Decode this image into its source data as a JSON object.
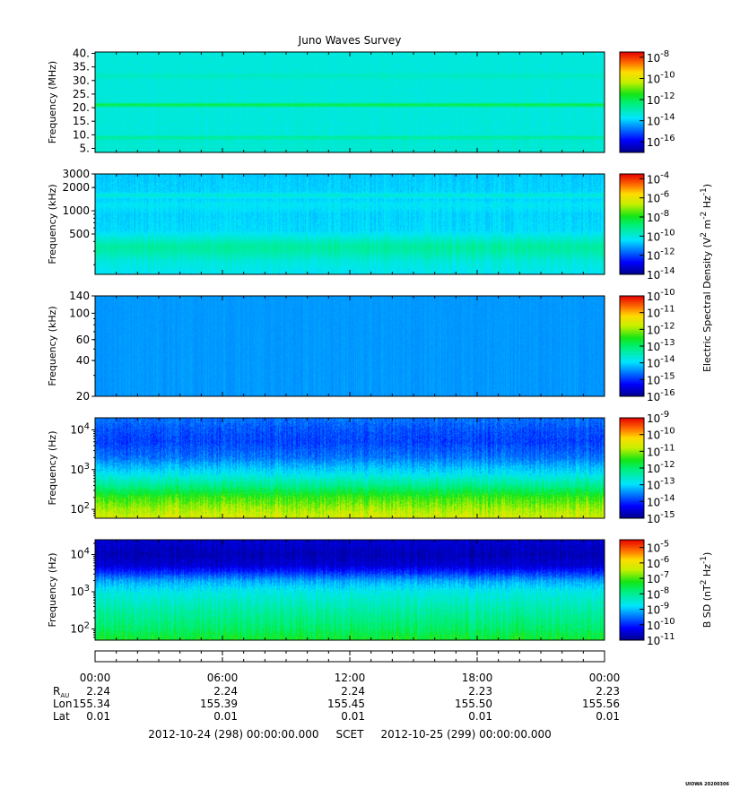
{
  "chart_data": {
    "type": "heatmap",
    "title": "Juno Waves Survey",
    "time_axis": {
      "ticks": [
        "00:00",
        "06:00",
        "12:00",
        "18:00",
        "00:00"
      ],
      "ephemeris": [
        {
          "label": "R",
          "sub": "AU",
          "values": [
            "2.24",
            "2.24",
            "2.24",
            "2.23",
            "2.23"
          ]
        },
        {
          "label": "Lon",
          "sub": "",
          "values": [
            "155.34",
            "155.39",
            "155.45",
            "155.50",
            "155.56"
          ]
        },
        {
          "label": "Lat",
          "sub": "",
          "values": [
            "0.01",
            "0.01",
            "0.01",
            "0.01",
            "0.01"
          ]
        }
      ],
      "range_text": "2012-10-24 (298) 00:00:00.000     SCET     2012-10-25 (299) 00:00:00.000",
      "start": "2012-10-24 00:00:00",
      "end": "2012-10-25 00:00:00"
    },
    "panels": [
      {
        "ylabel": "Frequency (MHz)",
        "yscale": "linear",
        "ylim": [
          3.5,
          40.5
        ],
        "yticks": [
          {
            "v": 5,
            "t": "5."
          },
          {
            "v": 10,
            "t": "10."
          },
          {
            "v": 15,
            "t": "15."
          },
          {
            "v": 20,
            "t": "20."
          },
          {
            "v": 25,
            "t": "25."
          },
          {
            "v": 30,
            "t": "30."
          },
          {
            "v": 35,
            "t": "35."
          },
          {
            "v": 40,
            "t": "40."
          }
        ],
        "color_range_log10": [
          -17,
          -7.5
        ],
        "color_ticks": [
          -8,
          -10,
          -12,
          -14,
          -16
        ],
        "spectrum": [
          [
            3.5,
            -13.3
          ],
          [
            8,
            -13.3
          ],
          [
            9,
            -12.6
          ],
          [
            10,
            -13.4
          ],
          [
            20,
            -13.4
          ],
          [
            21,
            -11.7
          ],
          [
            22,
            -13.4
          ],
          [
            30,
            -13.4
          ],
          [
            32,
            -13.1
          ],
          [
            33,
            -13.4
          ],
          [
            40.5,
            -13.4
          ]
        ],
        "noise": 0.1,
        "grain": 0.15
      },
      {
        "ylabel": "Frequency (kHz)",
        "yscale": "log",
        "ylim": [
          150,
          3000
        ],
        "yticks": [
          {
            "v": 500,
            "t": "500"
          },
          {
            "v": 1000,
            "t": "1000"
          },
          {
            "v": 2000,
            "t": "2000"
          },
          {
            "v": 3000,
            "t": "3000"
          }
        ],
        "color_range_log10": [
          -14,
          -3.5
        ],
        "color_ticks": [
          -4,
          -6,
          -8,
          -10,
          -12,
          -14
        ],
        "spectrum": [
          [
            150,
            -10.3
          ],
          [
            220,
            -10.0
          ],
          [
            300,
            -9.4
          ],
          [
            350,
            -9.3
          ],
          [
            420,
            -9.8
          ],
          [
            550,
            -10.5
          ],
          [
            900,
            -10.6
          ],
          [
            1200,
            -10.3
          ],
          [
            1400,
            -10.6
          ],
          [
            1600,
            -9.9
          ],
          [
            1750,
            -10.6
          ],
          [
            3000,
            -10.7
          ]
        ],
        "noise": 0.3,
        "grain": 0.2
      },
      {
        "ylabel": "Frequency (kHz)",
        "yscale": "log",
        "ylim": [
          20,
          140
        ],
        "yticks": [
          {
            "v": 20,
            "t": "20"
          },
          {
            "v": 40,
            "t": "40"
          },
          {
            "v": 60,
            "t": "60"
          },
          {
            "v": 100,
            "t": "100"
          },
          {
            "v": 140,
            "t": "140"
          }
        ],
        "color_range_log10": [
          -16,
          -10
        ],
        "color_ticks": [
          -10,
          -11,
          -12,
          -13,
          -14,
          -15,
          -16
        ],
        "spectrum": [
          [
            20,
            -14.4
          ],
          [
            140,
            -14.4
          ]
        ],
        "noise": 0.08,
        "grain": 0.05
      },
      {
        "ylabel": "Frequency (Hz)",
        "yscale": "log",
        "ylim": [
          60,
          20000
        ],
        "yticks": [
          {
            "v": 100,
            "t": "10",
            "sup": "2"
          },
          {
            "v": 1000,
            "t": "10",
            "sup": "3"
          },
          {
            "v": 10000,
            "t": "10",
            "sup": "4"
          }
        ],
        "color_range_log10": [
          -15,
          -9
        ],
        "color_ticks": [
          -9,
          -10,
          -11,
          -12,
          -13,
          -14,
          -15
        ],
        "spectrum": [
          [
            60,
            -10.6
          ],
          [
            100,
            -10.9
          ],
          [
            200,
            -11.4
          ],
          [
            400,
            -12.2
          ],
          [
            800,
            -12.9
          ],
          [
            2000,
            -13.6
          ],
          [
            5000,
            -13.9
          ],
          [
            10000,
            -13.8
          ],
          [
            20000,
            -13.6
          ]
        ],
        "noise": 0.3,
        "grain": 0.25
      },
      {
        "ylabel": "Frequency (Hz)",
        "yscale": "log",
        "ylim": [
          50,
          25000
        ],
        "yticks": [
          {
            "v": 100,
            "t": "10",
            "sup": "2"
          },
          {
            "v": 1000,
            "t": "10",
            "sup": "3"
          },
          {
            "v": 10000,
            "t": "10",
            "sup": "4"
          }
        ],
        "color_range_log10": [
          -11,
          -4.5
        ],
        "color_ticks": [
          -5,
          -6,
          -7,
          -8,
          -9,
          -10,
          -11
        ],
        "spectrum": [
          [
            50,
            -7.3
          ],
          [
            100,
            -7.7
          ],
          [
            300,
            -8.1
          ],
          [
            1000,
            -8.6
          ],
          [
            2000,
            -9.2
          ],
          [
            3000,
            -9.8
          ],
          [
            5000,
            -10.5
          ],
          [
            10000,
            -10.7
          ],
          [
            25000,
            -10.5
          ]
        ],
        "noise": 0.3,
        "grain": 0.25
      }
    ],
    "colorbar_labels": [
      {
        "text": "Electric Spectral Density (V",
        "sup1": "2",
        "mid": " m",
        "sup2": "-2",
        "mid2": " Hz",
        "sup3": "-1",
        "end": ")"
      },
      {
        "text": "B SD (nT",
        "sup1": "2",
        "mid": " Hz",
        "sup2": "-1",
        "mid2": "",
        "sup3": "",
        "end": ")"
      }
    ],
    "footer_stamp": "UIOWA 20200306"
  }
}
